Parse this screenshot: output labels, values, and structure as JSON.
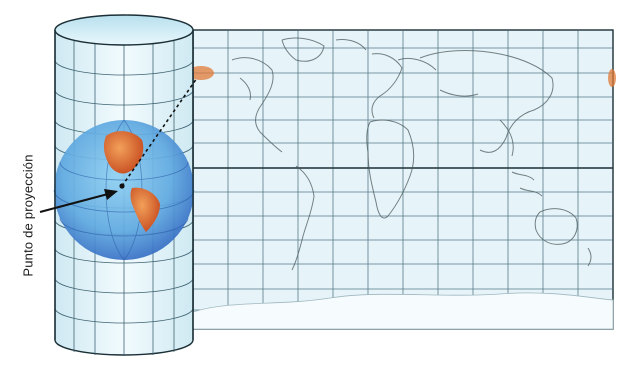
{
  "label": {
    "text": "Punto de proyección"
  },
  "colors": {
    "cylinder_fill": "#dff1f7",
    "map_fill": "#e6f4fa",
    "grid": "#3f6472",
    "outline": "#1b2f36",
    "globe_ocean": "#5fa9e0",
    "globe_deep": "#2f64bf",
    "landmass": "#d86a2a",
    "projection_line": "#111111"
  },
  "icons": [
    "arrow-icon",
    "globe-icon",
    "cylinder-icon",
    "world-map-icon"
  ]
}
